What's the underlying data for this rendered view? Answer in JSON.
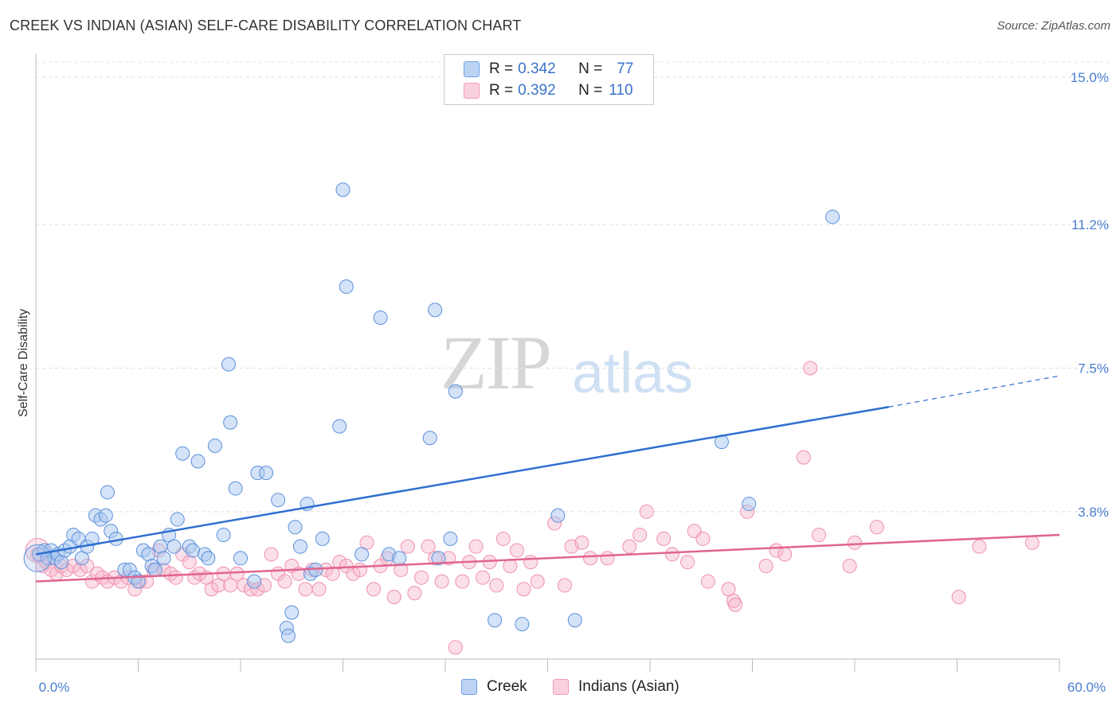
{
  "title": "CREEK VS INDIAN (ASIAN) SELF-CARE DISABILITY CORRELATION CHART",
  "source": "Source: ZipAtlas.com",
  "watermark": {
    "zip": "ZIP",
    "atlas": "atlas"
  },
  "legend": {
    "rows": [
      {
        "r_label": "R =",
        "r_value": "0.342",
        "n_label": "N =",
        "n_value": "77",
        "color": "#6fa1e6"
      },
      {
        "r_label": "R =",
        "r_value": "0.392",
        "n_label": "N =",
        "n_value": "110",
        "color": "#f29bb6"
      }
    ]
  },
  "bottom_legend": {
    "creek": "Creek",
    "indians": "Indians (Asian)"
  },
  "chart_data": {
    "type": "scatter",
    "xlabel": "",
    "ylabel": "Self-Care Disability",
    "xlim": [
      0,
      60
    ],
    "ylim": [
      0,
      15.5
    ],
    "x_tick_labels": [
      "0.0%",
      "60.0%"
    ],
    "y_tick_labels": [
      "3.8%",
      "7.5%",
      "11.2%",
      "15.0%"
    ],
    "y_ticks": [
      3.8,
      7.5,
      11.2,
      15.0
    ],
    "grid": true,
    "colors": {
      "creek": "#6fa1e6",
      "creek_line": "#2f6fcf",
      "indians": "#f29bb6",
      "indians_line": "#e0658f"
    },
    "series": [
      {
        "name": "Creek",
        "trend": {
          "x0": 0,
          "y0": 2.7,
          "x1": 50,
          "y1": 6.5,
          "dash_to_x": 60,
          "dash_to_y": 7.3
        },
        "points": [
          [
            0.2,
            2.7
          ],
          [
            0.5,
            2.8
          ],
          [
            0.7,
            2.6
          ],
          [
            0.9,
            2.8
          ],
          [
            1.1,
            2.6
          ],
          [
            1.3,
            2.7
          ],
          [
            1.5,
            2.5
          ],
          [
            1.7,
            2.8
          ],
          [
            2.0,
            2.9
          ],
          [
            2.2,
            3.2
          ],
          [
            2.5,
            3.1
          ],
          [
            2.7,
            2.6
          ],
          [
            3.0,
            2.9
          ],
          [
            3.3,
            3.1
          ],
          [
            3.5,
            3.7
          ],
          [
            3.8,
            3.6
          ],
          [
            4.1,
            3.7
          ],
          [
            4.4,
            3.3
          ],
          [
            4.7,
            3.1
          ],
          [
            4.2,
            4.3
          ],
          [
            5.2,
            2.3
          ],
          [
            5.5,
            2.3
          ],
          [
            5.8,
            2.1
          ],
          [
            6.0,
            2.0
          ],
          [
            6.3,
            2.8
          ],
          [
            6.6,
            2.7
          ],
          [
            6.8,
            2.4
          ],
          [
            7.0,
            2.3
          ],
          [
            7.3,
            2.9
          ],
          [
            7.5,
            2.6
          ],
          [
            7.8,
            3.2
          ],
          [
            8.1,
            2.9
          ],
          [
            8.3,
            3.6
          ],
          [
            8.6,
            5.3
          ],
          [
            9.0,
            2.9
          ],
          [
            9.2,
            2.8
          ],
          [
            9.5,
            5.1
          ],
          [
            9.9,
            2.7
          ],
          [
            10.1,
            2.6
          ],
          [
            10.5,
            5.5
          ],
          [
            11.0,
            3.2
          ],
          [
            11.3,
            7.6
          ],
          [
            11.4,
            6.1
          ],
          [
            11.7,
            4.4
          ],
          [
            12.0,
            2.6
          ],
          [
            12.8,
            2.0
          ],
          [
            13.0,
            4.8
          ],
          [
            13.5,
            4.8
          ],
          [
            14.2,
            4.1
          ],
          [
            15.0,
            1.2
          ],
          [
            14.7,
            0.8
          ],
          [
            14.8,
            0.6
          ],
          [
            15.2,
            3.4
          ],
          [
            15.5,
            2.9
          ],
          [
            15.9,
            4.0
          ],
          [
            16.1,
            2.2
          ],
          [
            16.4,
            2.3
          ],
          [
            16.8,
            3.1
          ],
          [
            17.8,
            6.0
          ],
          [
            18.0,
            12.1
          ],
          [
            18.2,
            9.6
          ],
          [
            19.1,
            2.7
          ],
          [
            20.2,
            8.8
          ],
          [
            20.7,
            2.7
          ],
          [
            21.3,
            2.6
          ],
          [
            23.1,
            5.7
          ],
          [
            23.4,
            9.0
          ],
          [
            23.6,
            2.6
          ],
          [
            24.3,
            3.1
          ],
          [
            24.6,
            6.9
          ],
          [
            26.9,
            1.0
          ],
          [
            28.5,
            0.9
          ],
          [
            30.6,
            3.7
          ],
          [
            31.6,
            1.0
          ],
          [
            40.2,
            5.6
          ],
          [
            41.8,
            4.0
          ],
          [
            46.7,
            11.4
          ]
        ]
      },
      {
        "name": "Indians (Asian)",
        "trend": {
          "x0": 0,
          "y0": 2.0,
          "x1": 60,
          "y1": 3.2
        },
        "points": [
          [
            0.1,
            2.7
          ],
          [
            0.4,
            2.4
          ],
          [
            0.6,
            2.5
          ],
          [
            0.9,
            2.3
          ],
          [
            1.2,
            2.2
          ],
          [
            1.5,
            2.4
          ],
          [
            1.8,
            2.3
          ],
          [
            2.2,
            2.4
          ],
          [
            2.6,
            2.3
          ],
          [
            3.0,
            2.4
          ],
          [
            3.3,
            2.0
          ],
          [
            3.6,
            2.2
          ],
          [
            3.9,
            2.1
          ],
          [
            4.2,
            2.0
          ],
          [
            4.6,
            2.1
          ],
          [
            5.0,
            2.0
          ],
          [
            5.4,
            2.1
          ],
          [
            5.8,
            1.8
          ],
          [
            6.1,
            2.0
          ],
          [
            6.5,
            2.0
          ],
          [
            6.9,
            2.3
          ],
          [
            7.2,
            2.8
          ],
          [
            7.5,
            2.3
          ],
          [
            7.9,
            2.2
          ],
          [
            8.2,
            2.1
          ],
          [
            8.6,
            2.7
          ],
          [
            9.0,
            2.5
          ],
          [
            9.3,
            2.1
          ],
          [
            9.6,
            2.2
          ],
          [
            10.0,
            2.1
          ],
          [
            10.3,
            1.8
          ],
          [
            10.7,
            1.9
          ],
          [
            11.0,
            2.2
          ],
          [
            11.4,
            1.9
          ],
          [
            11.8,
            2.2
          ],
          [
            12.2,
            1.9
          ],
          [
            12.6,
            1.8
          ],
          [
            13.0,
            1.8
          ],
          [
            13.4,
            1.9
          ],
          [
            13.8,
            2.7
          ],
          [
            14.2,
            2.2
          ],
          [
            14.6,
            2.0
          ],
          [
            15.0,
            2.4
          ],
          [
            15.4,
            2.2
          ],
          [
            15.8,
            1.8
          ],
          [
            16.2,
            2.3
          ],
          [
            16.6,
            1.8
          ],
          [
            17.0,
            2.3
          ],
          [
            17.4,
            2.2
          ],
          [
            17.8,
            2.5
          ],
          [
            18.2,
            2.4
          ],
          [
            18.6,
            2.2
          ],
          [
            19.0,
            2.3
          ],
          [
            19.4,
            3.0
          ],
          [
            19.8,
            1.8
          ],
          [
            20.2,
            2.4
          ],
          [
            20.6,
            2.6
          ],
          [
            21.0,
            1.6
          ],
          [
            21.4,
            2.3
          ],
          [
            21.8,
            2.9
          ],
          [
            22.2,
            1.7
          ],
          [
            22.6,
            2.1
          ],
          [
            23.0,
            2.9
          ],
          [
            23.4,
            2.6
          ],
          [
            23.8,
            2.0
          ],
          [
            24.2,
            2.6
          ],
          [
            24.6,
            0.3
          ],
          [
            25.0,
            2.0
          ],
          [
            25.4,
            2.5
          ],
          [
            25.8,
            2.9
          ],
          [
            26.2,
            2.1
          ],
          [
            26.6,
            2.5
          ],
          [
            27.0,
            1.9
          ],
          [
            27.4,
            3.1
          ],
          [
            27.8,
            2.4
          ],
          [
            28.2,
            2.8
          ],
          [
            28.6,
            1.8
          ],
          [
            29.0,
            2.5
          ],
          [
            29.4,
            2.0
          ],
          [
            30.4,
            3.5
          ],
          [
            31.0,
            1.9
          ],
          [
            31.4,
            2.9
          ],
          [
            32.0,
            3.0
          ],
          [
            32.5,
            2.6
          ],
          [
            33.5,
            2.6
          ],
          [
            34.8,
            2.9
          ],
          [
            35.4,
            3.2
          ],
          [
            35.8,
            3.8
          ],
          [
            36.8,
            3.1
          ],
          [
            37.3,
            2.7
          ],
          [
            38.2,
            2.5
          ],
          [
            38.6,
            3.3
          ],
          [
            39.1,
            3.1
          ],
          [
            39.4,
            2.0
          ],
          [
            40.6,
            1.8
          ],
          [
            40.9,
            1.5
          ],
          [
            41.0,
            1.4
          ],
          [
            41.7,
            3.8
          ],
          [
            42.8,
            2.4
          ],
          [
            43.4,
            2.8
          ],
          [
            43.9,
            2.7
          ],
          [
            45.0,
            5.2
          ],
          [
            45.4,
            7.5
          ],
          [
            45.9,
            3.2
          ],
          [
            47.7,
            2.4
          ],
          [
            48.0,
            3.0
          ],
          [
            49.3,
            3.4
          ],
          [
            54.1,
            1.6
          ],
          [
            55.3,
            2.9
          ],
          [
            58.4,
            3.0
          ]
        ]
      }
    ]
  }
}
